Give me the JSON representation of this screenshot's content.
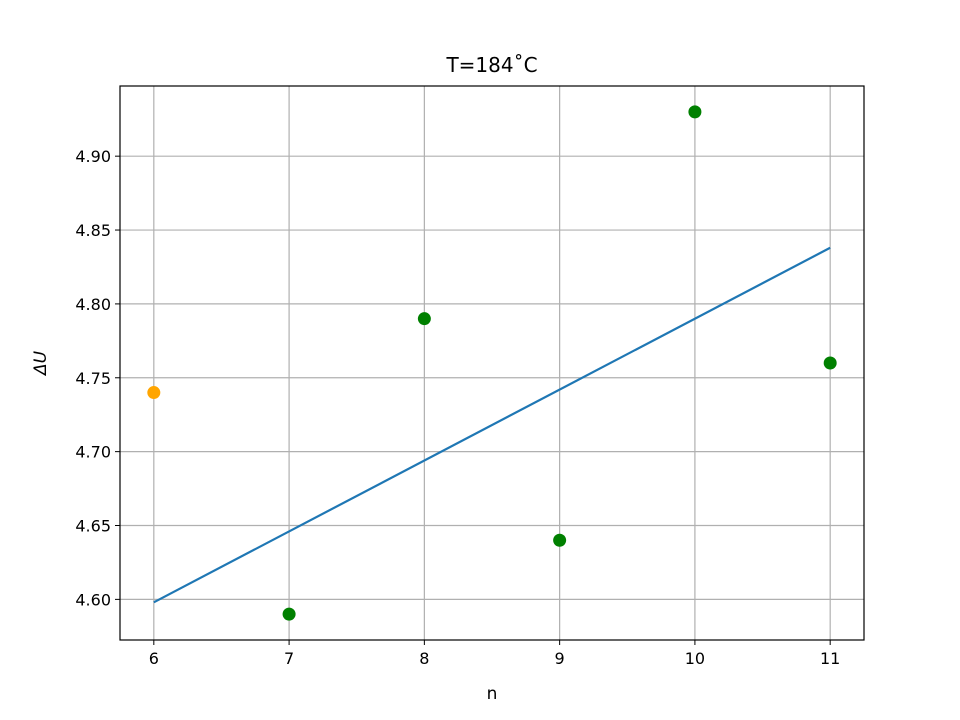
{
  "chart_data": {
    "type": "scatter",
    "title": "T=184$^\\circ$C",
    "title_display": "T=184˚C",
    "xlabel": "n",
    "ylabel": "ΔU",
    "xlim": [
      5.75,
      11.25
    ],
    "ylim": [
      4.5725,
      4.9475
    ],
    "grid": true,
    "xticks": [
      6,
      7,
      8,
      9,
      10,
      11
    ],
    "yticks": [
      4.6,
      4.65,
      4.7,
      4.75,
      4.8,
      4.85,
      4.9
    ],
    "series": [
      {
        "type": "scatter",
        "color": "#ffa500",
        "points": [
          [
            6,
            4.74
          ]
        ]
      },
      {
        "type": "scatter",
        "color": "#008000",
        "points": [
          [
            7,
            4.59
          ],
          [
            8,
            4.79
          ],
          [
            9,
            4.64
          ],
          [
            10,
            4.93
          ],
          [
            11,
            4.76
          ]
        ]
      },
      {
        "type": "line",
        "color": "#1f77b4",
        "points": [
          [
            6,
            4.598
          ],
          [
            11,
            4.838
          ]
        ]
      }
    ]
  }
}
